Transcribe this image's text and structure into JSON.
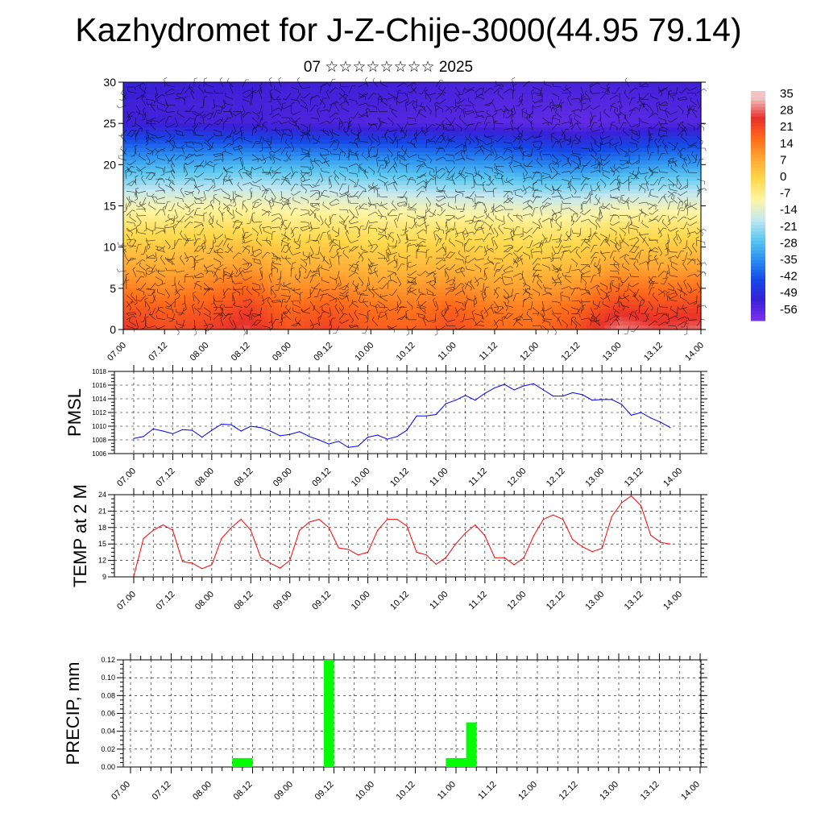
{
  "header": {
    "title": "Kazhydromet for J-Z-Chije-3000(44.95 79.14)",
    "subtitle": "07 ☆☆☆☆☆☆☆☆ 2025"
  },
  "time_ticks": [
    "07.00",
    "07.12",
    "08.00",
    "08.12",
    "09.00",
    "09.12",
    "10.00",
    "10.12",
    "11.00",
    "11.12",
    "12.00",
    "12.12",
    "13.00",
    "13.12",
    "14.00"
  ],
  "colorbar": {
    "labels": [
      "35",
      "28",
      "21",
      "14",
      "7",
      "0",
      "-7",
      "-14",
      "-21",
      "-28",
      "-35",
      "-42",
      "-49",
      "-56"
    ],
    "colors": [
      "#f2c4c4",
      "#e8302a",
      "#ff6a1a",
      "#ffa733",
      "#ffd84a",
      "#fff5a3",
      "#c5e8f0",
      "#5cc8f0",
      "#2b8ef0",
      "#1548e6",
      "#3a1fd6",
      "#7a33ef"
    ]
  },
  "chart_data": [
    {
      "type": "heatmap",
      "ylim": [
        0,
        30
      ],
      "yticks": [
        "0",
        "5",
        "10",
        "15",
        "20",
        "25",
        "30"
      ],
      "x": [
        "07.00",
        "07.12",
        "08.00",
        "08.12",
        "09.00",
        "09.12",
        "10.00",
        "10.12",
        "11.00",
        "11.12",
        "12.00",
        "12.12",
        "13.00",
        "13.12",
        "14.00"
      ],
      "y": [
        0,
        2.5,
        5,
        7.5,
        10,
        12.5,
        15,
        17.5,
        20,
        22.5,
        25,
        27.5,
        30
      ],
      "temperature_c": [
        [
          26,
          22,
          24,
          28,
          21,
          24,
          20,
          19,
          22,
          18,
          17,
          22,
          31,
          28,
          30
        ],
        [
          21,
          19,
          20,
          24,
          18,
          20,
          17,
          16,
          19,
          15,
          15,
          18,
          25,
          23,
          24
        ],
        [
          15,
          13,
          15,
          18,
          12,
          14,
          11,
          11,
          13,
          10,
          10,
          12,
          17,
          16,
          17
        ],
        [
          9,
          8,
          9,
          11,
          7,
          8,
          6,
          6,
          7,
          5,
          5,
          6,
          10,
          9,
          10
        ],
        [
          4,
          3,
          4,
          5,
          2,
          3,
          1,
          1,
          2,
          1,
          0,
          1,
          4,
          3,
          4
        ],
        [
          -3,
          -3,
          -2,
          -2,
          -4,
          -3,
          -4,
          -4,
          -4,
          -4,
          -5,
          -5,
          -3,
          -3,
          -3
        ],
        [
          -10,
          -10,
          -9,
          -9,
          -10,
          -10,
          -11,
          -11,
          -12,
          -12,
          -13,
          -13,
          -11,
          -11,
          -11
        ],
        [
          -20,
          -19,
          -19,
          -18,
          -19,
          -19,
          -20,
          -21,
          -22,
          -22,
          -24,
          -24,
          -22,
          -21,
          -21
        ],
        [
          -30,
          -29,
          -29,
          -28,
          -29,
          -29,
          -30,
          -31,
          -32,
          -32,
          -35,
          -36,
          -34,
          -32,
          -32
        ],
        [
          -40,
          -40,
          -40,
          -40,
          -41,
          -41,
          -42,
          -42,
          -43,
          -43,
          -45,
          -47,
          -45,
          -43,
          -43
        ],
        [
          -52,
          -52,
          -53,
          -53,
          -54,
          -54,
          -55,
          -55,
          -55,
          -56,
          -56,
          -57,
          -56,
          -55,
          -55
        ],
        [
          -52,
          -53,
          -53,
          -53,
          -53,
          -53,
          -53,
          -54,
          -54,
          -55,
          -55,
          -55,
          -55,
          -54,
          -54
        ],
        [
          -50,
          -51,
          -51,
          -51,
          -52,
          -52,
          -52,
          -52,
          -53,
          -53,
          -53,
          -53,
          -53,
          -52,
          -52
        ]
      ]
    },
    {
      "type": "line",
      "ylabel": "PMSL",
      "ylim": [
        1006,
        1018
      ],
      "yticks": [
        "1006",
        "1008",
        "1010",
        "1012",
        "1014",
        "1016",
        "1018"
      ],
      "x_hours": [
        0,
        3,
        6,
        9,
        12,
        15,
        18,
        21,
        24,
        27,
        30,
        33,
        36,
        39,
        42,
        45,
        48,
        51,
        54,
        57,
        60,
        63,
        66,
        69,
        72,
        75,
        78,
        81,
        84,
        87,
        90,
        93,
        96,
        99,
        102,
        105,
        108,
        111,
        114,
        117,
        120,
        123,
        126,
        129,
        132,
        135,
        138,
        141,
        144,
        147,
        150,
        153,
        156,
        159,
        162,
        165
      ],
      "values": [
        1008.2,
        1008.5,
        1009.6,
        1009.3,
        1008.9,
        1009.5,
        1009.4,
        1008.4,
        1009.4,
        1010.3,
        1010.2,
        1009.3,
        1010.0,
        1009.8,
        1009.3,
        1008.6,
        1008.8,
        1009.2,
        1008.5,
        1008.0,
        1007.4,
        1007.8,
        1006.9,
        1007.1,
        1008.4,
        1008.7,
        1008.1,
        1008.5,
        1009.4,
        1011.5,
        1011.5,
        1011.7,
        1013.3,
        1013.8,
        1014.5,
        1013.8,
        1014.8,
        1015.6,
        1016.1,
        1015.3,
        1015.9,
        1016.2,
        1015.3,
        1014.4,
        1014.4,
        1014.9,
        1014.6,
        1013.8,
        1013.9,
        1013.9,
        1013.2,
        1011.6,
        1012.0,
        1011.2,
        1010.6,
        1009.8
      ]
    },
    {
      "type": "line",
      "ylabel": "TEMP at 2 M",
      "ylim": [
        9,
        24
      ],
      "yticks": [
        "9",
        "12",
        "15",
        "18",
        "21",
        "24"
      ],
      "x_hours": [
        0,
        3,
        6,
        9,
        12,
        15,
        18,
        21,
        24,
        27,
        30,
        33,
        36,
        39,
        42,
        45,
        48,
        51,
        54,
        57,
        60,
        63,
        66,
        69,
        72,
        75,
        78,
        81,
        84,
        87,
        90,
        93,
        96,
        99,
        102,
        105,
        108,
        111,
        114,
        117,
        120,
        123,
        126,
        129,
        132,
        135,
        138,
        141,
        144,
        147,
        150,
        153,
        156,
        159,
        162,
        165
      ],
      "values": [
        9.1,
        16.0,
        17.5,
        18.5,
        17.5,
        11.8,
        11.5,
        10.5,
        11.2,
        16.0,
        18.0,
        19.5,
        17.5,
        12.6,
        11.5,
        10.6,
        12.0,
        17.5,
        19.0,
        19.5,
        18.0,
        14.3,
        14.0,
        13.0,
        13.5,
        17.5,
        19.5,
        19.5,
        18.3,
        13.5,
        13.0,
        11.3,
        12.5,
        15.0,
        17.0,
        18.5,
        16.5,
        12.5,
        12.5,
        11.2,
        12.5,
        16.5,
        19.5,
        20.3,
        19.5,
        15.8,
        14.5,
        13.6,
        14.2,
        20.0,
        22.5,
        23.8,
        22.0,
        16.6,
        15.3,
        15.0
      ]
    },
    {
      "type": "bar",
      "ylabel": "PRECIP, mm",
      "ylim": [
        0,
        0.12
      ],
      "yticks": [
        "0.00",
        "0.02",
        "0.04",
        "0.06",
        "0.08",
        "0.10",
        "0.12"
      ],
      "bars": [
        {
          "start_hours": 30,
          "end_hours": 36,
          "value": 0.01
        },
        {
          "start_hours": 57,
          "end_hours": 60,
          "value": 0.12
        },
        {
          "start_hours": 93,
          "end_hours": 99,
          "value": 0.01
        },
        {
          "start_hours": 99,
          "end_hours": 102,
          "value": 0.05
        }
      ]
    }
  ]
}
